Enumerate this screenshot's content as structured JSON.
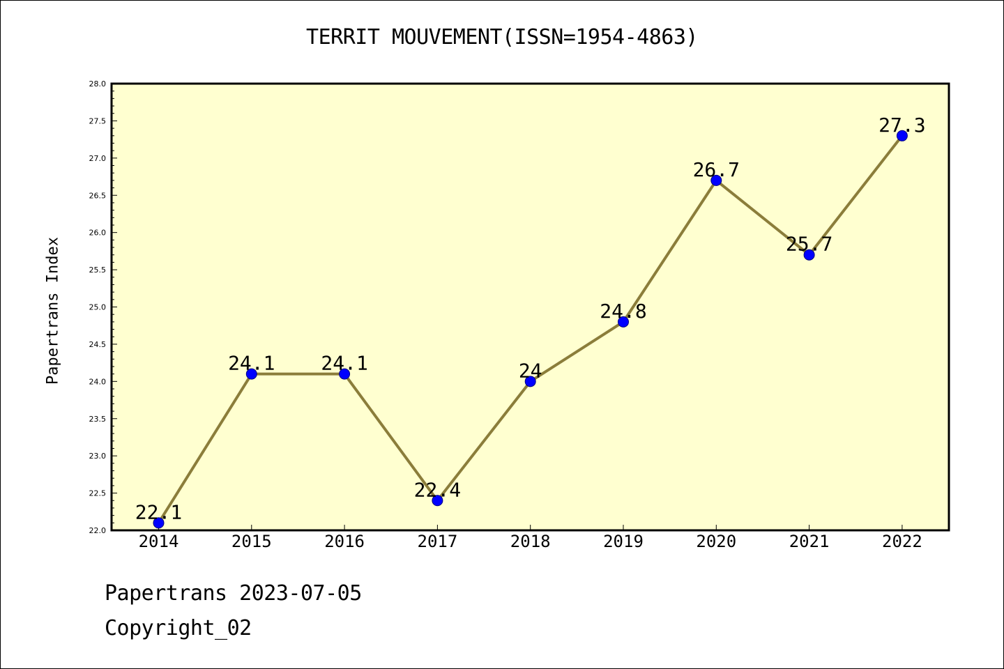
{
  "chart_data": {
    "type": "line",
    "title": "TERRIT MOUVEMENT(ISSN=1954-4863)",
    "xlabel": "",
    "ylabel": "Papertrans Index",
    "categories": [
      "2014",
      "2015",
      "2016",
      "2017",
      "2018",
      "2019",
      "2020",
      "2021",
      "2022"
    ],
    "series": [
      {
        "values": [
          22.1,
          24.1,
          24.1,
          22.4,
          24.0,
          24.8,
          26.7,
          25.7,
          27.3
        ],
        "data_labels": [
          "22.1",
          "24.1",
          "24.1",
          "22.4",
          "24",
          "24.8",
          "26.7",
          "25.7",
          "27.3"
        ]
      }
    ],
    "ylim": [
      22.0,
      28.0
    ],
    "yticks": [
      "22.0",
      "22.5",
      "23.0",
      "23.5",
      "24.0",
      "24.5",
      "25.0",
      "25.5",
      "26.0",
      "26.5",
      "27.0",
      "27.5",
      "28.0"
    ],
    "grid": false,
    "legend": "none",
    "colors": {
      "plot_background": "#ffffd0",
      "line": "#8b7d3a",
      "marker_fill": "#0000ff",
      "marker_edge": "#000080",
      "axis": "#000000"
    }
  },
  "footer": {
    "line1": "Papertrans 2023-07-05",
    "line2": "Copyright_02"
  }
}
